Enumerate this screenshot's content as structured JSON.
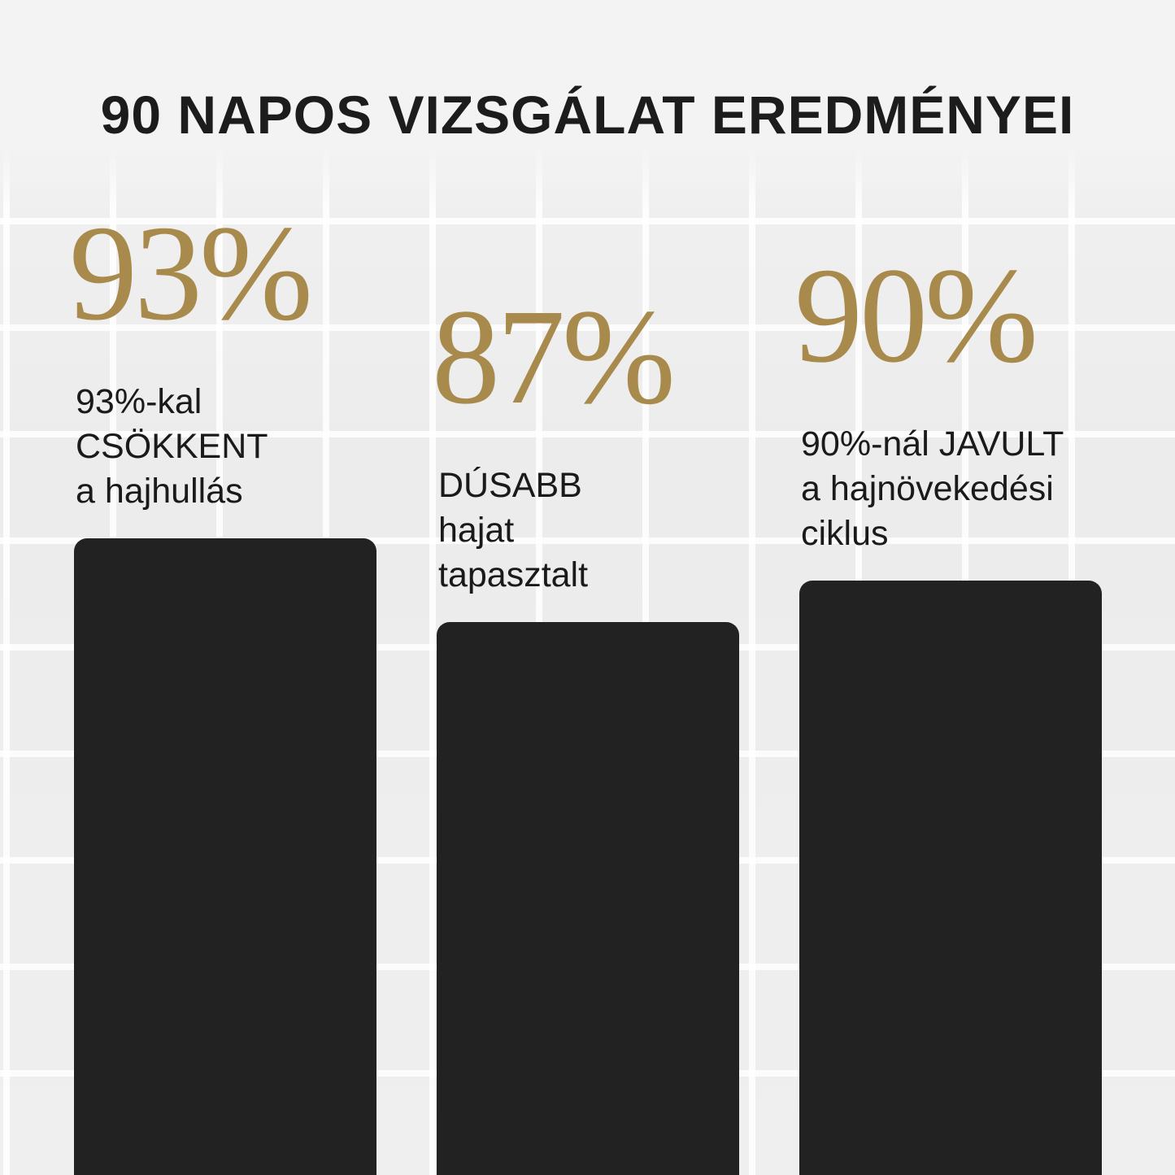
{
  "chart_data": {
    "type": "bar",
    "title": "90 NAPOS VIZSGÁLAT EREDMÉNYEI",
    "categories": [
      "93%-kal CSÖKKENT a hajhullás",
      "DÚSABB hajat tapasztalt",
      "90%-nál JAVULT a hajnövekedési ciklus"
    ],
    "values": [
      93,
      87,
      90
    ],
    "value_labels": [
      "93%",
      "87%",
      "90%"
    ],
    "description_lines": [
      [
        "93%-kal",
        "CSÖKKENT",
        "a hajhullás"
      ],
      [
        "DÚSABB",
        "hajat",
        "tapasztalt"
      ],
      [
        "90%-nál JAVULT",
        "a hajnövekedési",
        "ciklus"
      ]
    ],
    "unit": "%",
    "grid": false,
    "colors": {
      "bar": "#222222",
      "value_label": "#a88a4c",
      "text": "#1a1a1a"
    }
  }
}
